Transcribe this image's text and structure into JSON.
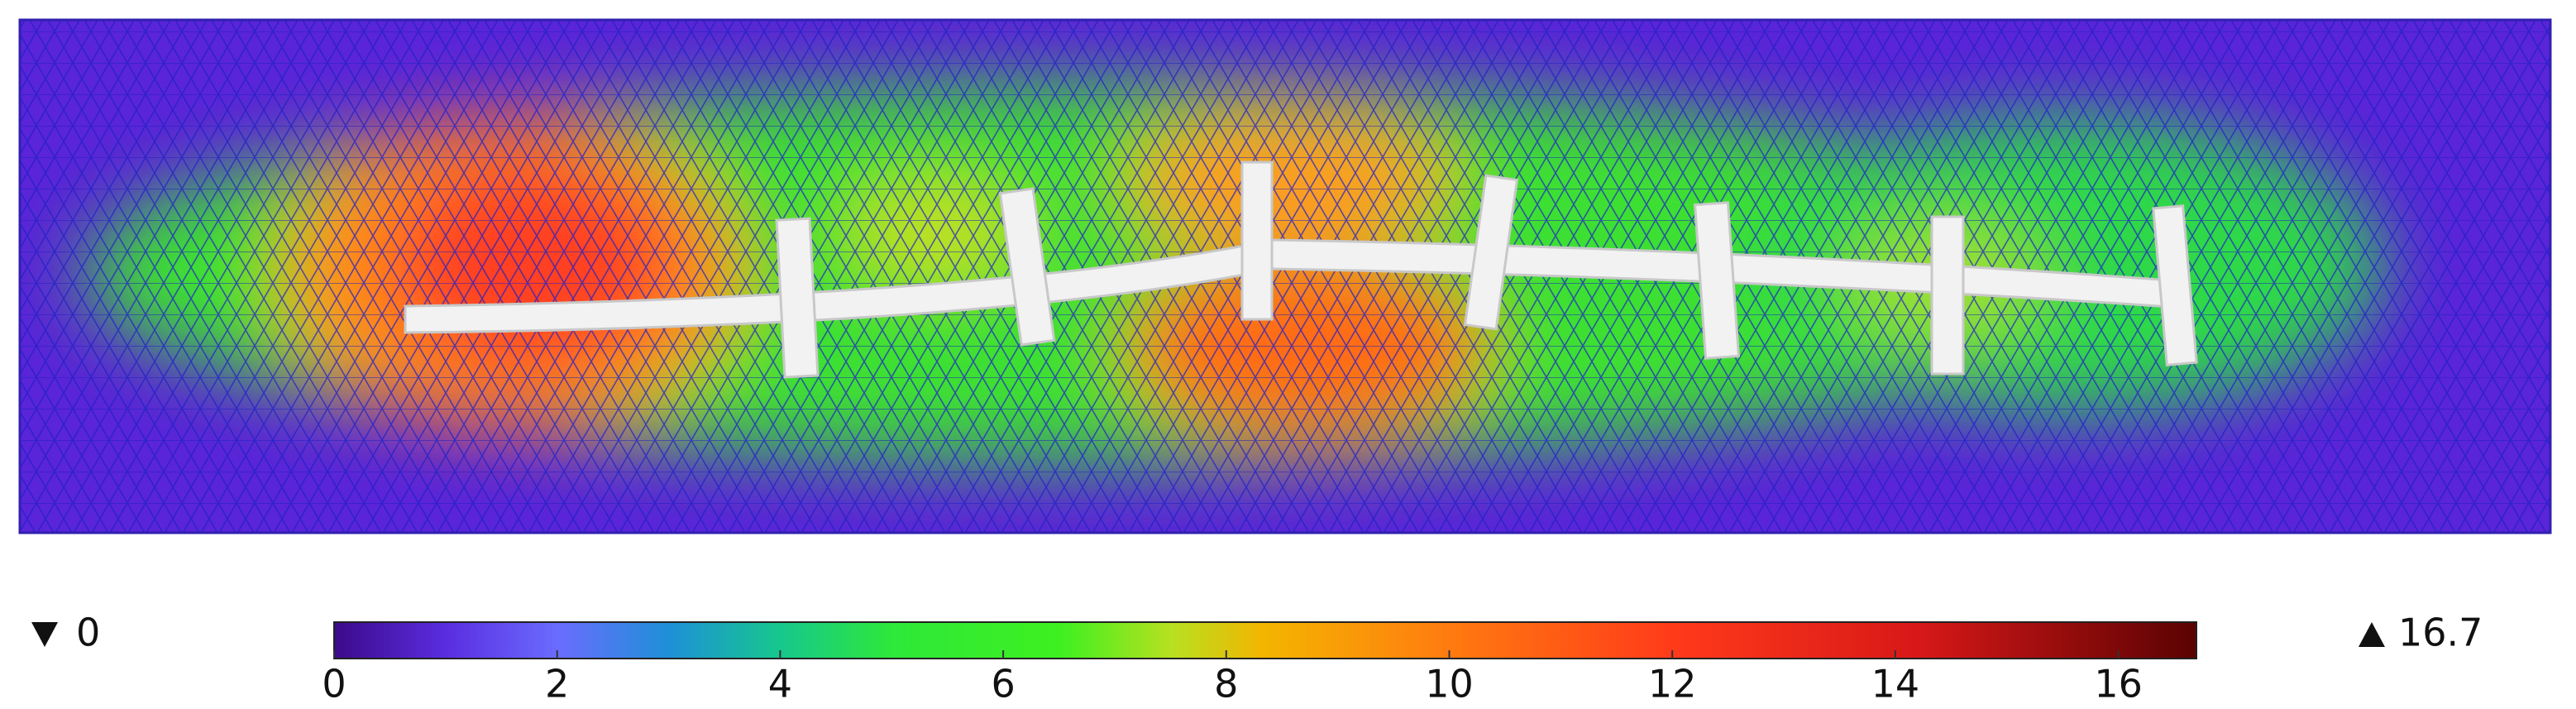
{
  "chart_data": {
    "type": "field",
    "colorbar": {
      "clim": [
        0,
        16.7
      ],
      "ticks": [
        0,
        2,
        4,
        6,
        8,
        10,
        12,
        14,
        16
      ]
    },
    "min": 0,
    "max": 16.7
  }
}
